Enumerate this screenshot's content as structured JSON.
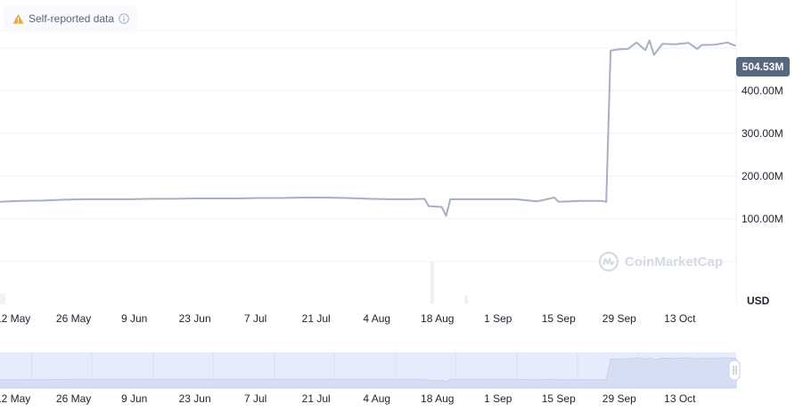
{
  "badge": {
    "label": "Self-reported data",
    "icon": "warning-icon",
    "info_icon": "info-icon"
  },
  "current_value_label": "504.53M",
  "watermark": "CoinMarketCap",
  "currency": "USD",
  "colors": {
    "line": "#a6b0c3",
    "grid": "#eff2f5",
    "navigator_fill": "#e6ecfb",
    "tag_bg": "#58667e"
  },
  "chart_data": {
    "type": "line",
    "title": "",
    "xlabel": "",
    "ylabel": "",
    "grid": true,
    "ylim": [
      -100000000,
      550000000
    ],
    "y_ticks": [
      100000000,
      200000000,
      300000000,
      400000000
    ],
    "y_tick_labels": [
      "100.00M",
      "200.00M",
      "300.00M",
      "400.00M"
    ],
    "x_tick_labels": [
      "12 May",
      "26 May",
      "9 Jun",
      "23 Jun",
      "7 Jul",
      "21 Jul",
      "4 Aug",
      "18 Aug",
      "1 Sep",
      "15 Sep",
      "29 Sep",
      "13 Oct"
    ],
    "x_ticks": [
      "2024-05-12",
      "2024-05-26",
      "2024-06-09",
      "2024-06-23",
      "2024-07-07",
      "2024-07-21",
      "2024-08-04",
      "2024-08-18",
      "2024-09-01",
      "2024-09-15",
      "2024-09-29",
      "2024-10-13"
    ],
    "x_range": [
      "2024-05-09",
      "2024-10-26"
    ],
    "last_value": 504530000,
    "series": [
      {
        "x": [
          "2024-05-09",
          "2024-05-14",
          "2024-05-19",
          "2024-05-24",
          "2024-05-29",
          "2024-06-03",
          "2024-06-08",
          "2024-06-13",
          "2024-06-18",
          "2024-06-23",
          "2024-06-28",
          "2024-07-03",
          "2024-07-08",
          "2024-07-13",
          "2024-07-18",
          "2024-07-23",
          "2024-07-28",
          "2024-08-02",
          "2024-08-07",
          "2024-08-12",
          "2024-08-15",
          "2024-08-16",
          "2024-08-19",
          "2024-08-20",
          "2024-08-21",
          "2024-08-26",
          "2024-08-31",
          "2024-09-05",
          "2024-09-10",
          "2024-09-14",
          "2024-09-15",
          "2024-09-20",
          "2024-09-25",
          "2024-09-26",
          "2024-09-27",
          "2024-09-29",
          "2024-10-01",
          "2024-10-03",
          "2024-10-05",
          "2024-10-06",
          "2024-10-07",
          "2024-10-09",
          "2024-10-12",
          "2024-10-15",
          "2024-10-17",
          "2024-10-18",
          "2024-10-21",
          "2024-10-24",
          "2024-10-26"
        ],
        "values": [
          140000000,
          142000000,
          143000000,
          145000000,
          146000000,
          146000000,
          146000000,
          147000000,
          147000000,
          148000000,
          148000000,
          148000000,
          149000000,
          149000000,
          150000000,
          150000000,
          149000000,
          147000000,
          146000000,
          146000000,
          147000000,
          130000000,
          128000000,
          107000000,
          146000000,
          146000000,
          146000000,
          146000000,
          141000000,
          150000000,
          140000000,
          142000000,
          142000000,
          140000000,
          494000000,
          497000000,
          498000000,
          513000000,
          495000000,
          518000000,
          484000000,
          510000000,
          509000000,
          512000000,
          498000000,
          507000000,
          508000000,
          513000000,
          504530000
        ]
      }
    ]
  }
}
